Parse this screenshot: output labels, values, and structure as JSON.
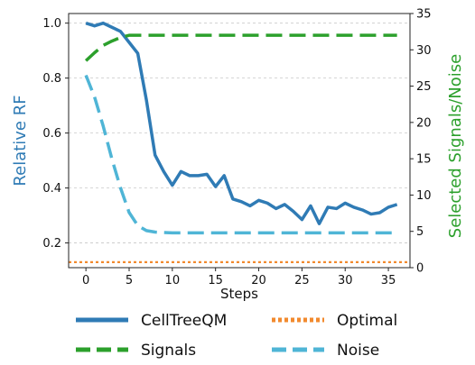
{
  "chart_data": {
    "type": "line",
    "xlabel": "Steps",
    "ylabel_left": "Relative RF",
    "ylabel_right": "Selected Signals/Noise",
    "xlim": [
      -2,
      37.5
    ],
    "ylim_left": [
      0.11,
      1.035
    ],
    "ylim_right": [
      0,
      35
    ],
    "x_ticks": [
      0,
      5,
      10,
      15,
      20,
      25,
      30,
      35
    ],
    "y_left_ticks": [
      0.2,
      0.4,
      0.6,
      0.8,
      1.0
    ],
    "y_left_tick_labels": [
      "0.2",
      "0.4",
      "0.6",
      "0.8",
      "1.0"
    ],
    "y_right_ticks": [
      0,
      5,
      10,
      15,
      20,
      25,
      30,
      35
    ],
    "grid": "horizontal dashed",
    "legend_position": "bottom",
    "series": [
      {
        "name": "CellTreeQM",
        "axis": "left",
        "style": "solid",
        "color": "#2f7bb5",
        "x": [
          0,
          1,
          2,
          3,
          4,
          5,
          6,
          7,
          8,
          9,
          10,
          11,
          12,
          13,
          14,
          15,
          16,
          17,
          18,
          19,
          20,
          21,
          22,
          23,
          24,
          25,
          26,
          27,
          28,
          29,
          30,
          31,
          32,
          33,
          34,
          35,
          36
        ],
        "values": [
          1.0,
          0.99,
          1.0,
          0.985,
          0.97,
          0.93,
          0.89,
          0.72,
          0.52,
          0.46,
          0.41,
          0.46,
          0.445,
          0.445,
          0.45,
          0.405,
          0.445,
          0.36,
          0.35,
          0.335,
          0.355,
          0.345,
          0.325,
          0.34,
          0.315,
          0.285,
          0.335,
          0.27,
          0.33,
          0.325,
          0.345,
          0.33,
          0.32,
          0.305,
          0.31,
          0.33,
          0.34
        ]
      },
      {
        "name": "Optimal",
        "axis": "left",
        "style": "dotted",
        "color": "#f28a2e",
        "x": [
          -2,
          37.5
        ],
        "values": [
          0.13,
          0.13
        ]
      },
      {
        "name": "Signals",
        "axis": "right",
        "style": "dashed",
        "color": "#2ca02c",
        "x": [
          0,
          1,
          2,
          3,
          4,
          5,
          6,
          7,
          8,
          9,
          10,
          12,
          15,
          20,
          25,
          30,
          36
        ],
        "values": [
          28.5,
          29.6,
          30.6,
          31.2,
          31.7,
          32,
          32,
          32,
          32,
          32,
          32,
          32,
          32,
          32,
          32,
          32,
          32
        ]
      },
      {
        "name": "Noise",
        "axis": "right",
        "style": "dashed",
        "color": "#4fb5d6",
        "x": [
          0,
          1,
          2,
          3,
          4,
          5,
          6,
          7,
          8,
          9,
          10,
          12,
          15,
          20,
          25,
          30,
          36
        ],
        "values": [
          26.5,
          23.5,
          19.5,
          15,
          11,
          7.6,
          5.8,
          5.1,
          4.9,
          4.85,
          4.8,
          4.8,
          4.8,
          4.8,
          4.8,
          4.8,
          4.8
        ]
      }
    ]
  }
}
